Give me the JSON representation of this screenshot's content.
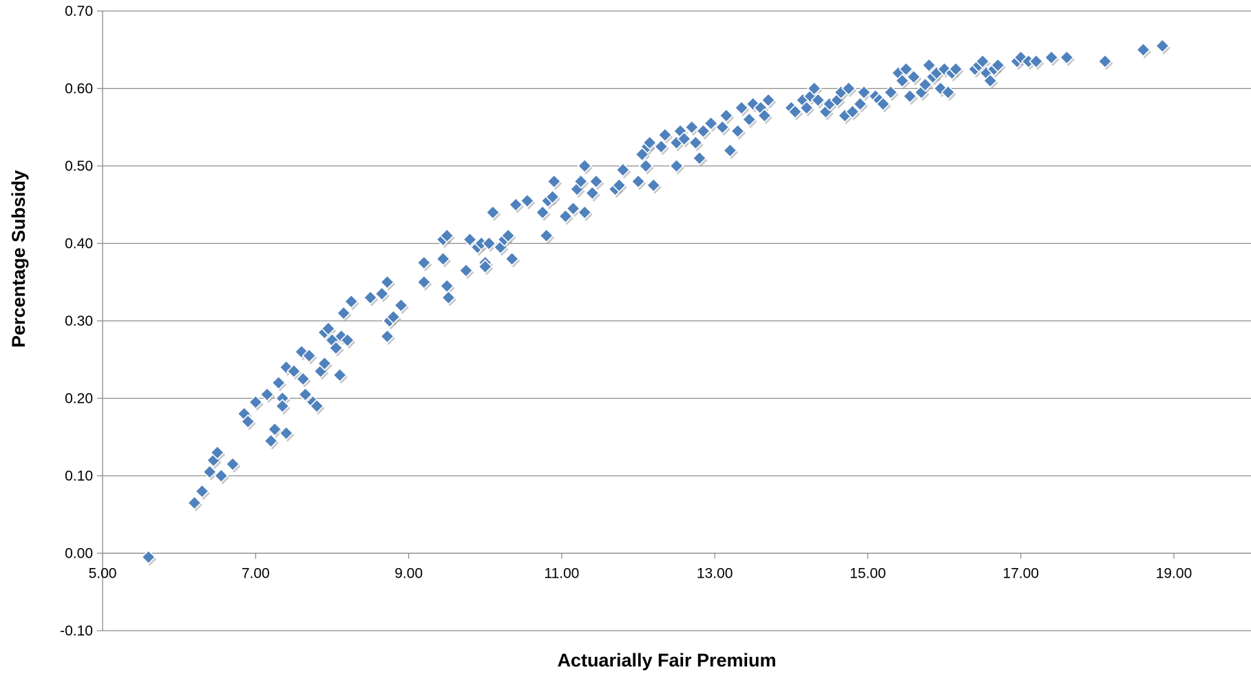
{
  "chart_data": {
    "type": "scatter",
    "title": "",
    "xlabel": "Actuarially Fair Premium",
    "ylabel": "Percentage Subsidy",
    "xlim": [
      5.0,
      20.0
    ],
    "ylim": [
      -0.1,
      0.7
    ],
    "x_ticks": [
      "5.00",
      "7.00",
      "9.00",
      "11.00",
      "13.00",
      "15.00",
      "17.00",
      "19.00"
    ],
    "y_ticks": [
      "0.70",
      "0.60",
      "0.50",
      "0.40",
      "0.30",
      "0.20",
      "0.10",
      "0.00",
      "-0.10"
    ],
    "grid": "horizontal",
    "legend": "none",
    "colors": {
      "marker": "#4f81bd",
      "marker_edge": "#ffffff",
      "grid": "#8c8c8c"
    },
    "marker": "diamond",
    "points": [
      [
        5.6,
        -0.005
      ],
      [
        6.2,
        0.065
      ],
      [
        6.3,
        0.08
      ],
      [
        6.4,
        0.105
      ],
      [
        6.45,
        0.12
      ],
      [
        6.5,
        0.13
      ],
      [
        6.55,
        0.1
      ],
      [
        6.7,
        0.115
      ],
      [
        6.85,
        0.18
      ],
      [
        6.9,
        0.17
      ],
      [
        7.0,
        0.195
      ],
      [
        7.15,
        0.205
      ],
      [
        7.2,
        0.145
      ],
      [
        7.25,
        0.16
      ],
      [
        7.3,
        0.22
      ],
      [
        7.35,
        0.2
      ],
      [
        7.35,
        0.19
      ],
      [
        7.4,
        0.24
      ],
      [
        7.4,
        0.155
      ],
      [
        7.5,
        0.235
      ],
      [
        7.6,
        0.26
      ],
      [
        7.62,
        0.225
      ],
      [
        7.65,
        0.205
      ],
      [
        7.7,
        0.255
      ],
      [
        7.75,
        0.195
      ],
      [
        7.8,
        0.19
      ],
      [
        7.85,
        0.235
      ],
      [
        7.9,
        0.245
      ],
      [
        7.9,
        0.285
      ],
      [
        7.95,
        0.29
      ],
      [
        8.0,
        0.275
      ],
      [
        8.05,
        0.265
      ],
      [
        8.1,
        0.23
      ],
      [
        8.12,
        0.28
      ],
      [
        8.15,
        0.31
      ],
      [
        8.2,
        0.275
      ],
      [
        8.25,
        0.325
      ],
      [
        8.5,
        0.33
      ],
      [
        8.65,
        0.335
      ],
      [
        8.72,
        0.35
      ],
      [
        8.72,
        0.28
      ],
      [
        8.75,
        0.3
      ],
      [
        8.8,
        0.305
      ],
      [
        8.9,
        0.32
      ],
      [
        9.2,
        0.375
      ],
      [
        9.2,
        0.35
      ],
      [
        9.45,
        0.405
      ],
      [
        9.45,
        0.38
      ],
      [
        9.5,
        0.41
      ],
      [
        9.5,
        0.345
      ],
      [
        9.52,
        0.33
      ],
      [
        9.75,
        0.365
      ],
      [
        9.8,
        0.405
      ],
      [
        9.9,
        0.395
      ],
      [
        9.95,
        0.4
      ],
      [
        10.0,
        0.375
      ],
      [
        10.0,
        0.37
      ],
      [
        10.05,
        0.4
      ],
      [
        10.1,
        0.44
      ],
      [
        10.2,
        0.395
      ],
      [
        10.25,
        0.405
      ],
      [
        10.3,
        0.41
      ],
      [
        10.35,
        0.38
      ],
      [
        10.4,
        0.45
      ],
      [
        10.55,
        0.455
      ],
      [
        10.75,
        0.44
      ],
      [
        10.8,
        0.41
      ],
      [
        10.82,
        0.455
      ],
      [
        10.88,
        0.46
      ],
      [
        10.9,
        0.48
      ],
      [
        11.05,
        0.435
      ],
      [
        11.15,
        0.445
      ],
      [
        11.2,
        0.47
      ],
      [
        11.25,
        0.48
      ],
      [
        11.3,
        0.5
      ],
      [
        11.3,
        0.44
      ],
      [
        11.4,
        0.465
      ],
      [
        11.45,
        0.48
      ],
      [
        11.7,
        0.47
      ],
      [
        11.75,
        0.475
      ],
      [
        11.8,
        0.495
      ],
      [
        12.0,
        0.48
      ],
      [
        12.05,
        0.515
      ],
      [
        12.1,
        0.5
      ],
      [
        12.12,
        0.525
      ],
      [
        12.15,
        0.53
      ],
      [
        12.2,
        0.475
      ],
      [
        12.3,
        0.525
      ],
      [
        12.35,
        0.54
      ],
      [
        12.5,
        0.53
      ],
      [
        12.5,
        0.5
      ],
      [
        12.55,
        0.545
      ],
      [
        12.6,
        0.535
      ],
      [
        12.7,
        0.55
      ],
      [
        12.75,
        0.53
      ],
      [
        12.8,
        0.51
      ],
      [
        12.85,
        0.545
      ],
      [
        12.95,
        0.555
      ],
      [
        13.1,
        0.55
      ],
      [
        13.15,
        0.565
      ],
      [
        13.2,
        0.52
      ],
      [
        13.3,
        0.545
      ],
      [
        13.35,
        0.575
      ],
      [
        13.45,
        0.56
      ],
      [
        13.5,
        0.58
      ],
      [
        13.6,
        0.575
      ],
      [
        13.65,
        0.565
      ],
      [
        13.7,
        0.585
      ],
      [
        14.0,
        0.575
      ],
      [
        14.05,
        0.57
      ],
      [
        14.15,
        0.585
      ],
      [
        14.2,
        0.575
      ],
      [
        14.25,
        0.59
      ],
      [
        14.3,
        0.6
      ],
      [
        14.35,
        0.585
      ],
      [
        14.45,
        0.57
      ],
      [
        14.5,
        0.58
      ],
      [
        14.6,
        0.585
      ],
      [
        14.65,
        0.595
      ],
      [
        14.7,
        0.565
      ],
      [
        14.75,
        0.6
      ],
      [
        14.8,
        0.57
      ],
      [
        14.9,
        0.58
      ],
      [
        14.95,
        0.595
      ],
      [
        15.1,
        0.59
      ],
      [
        15.15,
        0.585
      ],
      [
        15.2,
        0.58
      ],
      [
        15.3,
        0.595
      ],
      [
        15.4,
        0.62
      ],
      [
        15.45,
        0.61
      ],
      [
        15.5,
        0.625
      ],
      [
        15.55,
        0.59
      ],
      [
        15.6,
        0.615
      ],
      [
        15.7,
        0.595
      ],
      [
        15.75,
        0.605
      ],
      [
        15.8,
        0.63
      ],
      [
        15.85,
        0.615
      ],
      [
        15.9,
        0.62
      ],
      [
        15.95,
        0.6
      ],
      [
        16.0,
        0.625
      ],
      [
        16.05,
        0.595
      ],
      [
        16.1,
        0.62
      ],
      [
        16.15,
        0.625
      ],
      [
        16.4,
        0.625
      ],
      [
        16.45,
        0.63
      ],
      [
        16.5,
        0.635
      ],
      [
        16.55,
        0.62
      ],
      [
        16.6,
        0.61
      ],
      [
        16.65,
        0.625
      ],
      [
        16.7,
        0.63
      ],
      [
        16.95,
        0.635
      ],
      [
        17.0,
        0.64
      ],
      [
        17.1,
        0.635
      ],
      [
        17.2,
        0.635
      ],
      [
        17.4,
        0.64
      ],
      [
        17.6,
        0.64
      ],
      [
        18.1,
        0.635
      ],
      [
        18.6,
        0.65
      ],
      [
        18.85,
        0.655
      ]
    ]
  }
}
